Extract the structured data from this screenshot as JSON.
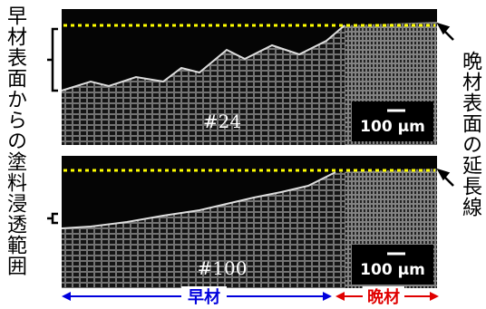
{
  "left_label": "早材表面からの塗料浸透範囲",
  "right_label": "晩材表面の延長線",
  "panels": [
    {
      "label": "#24",
      "scale_bar": "100 μm"
    },
    {
      "label": "#100",
      "scale_bar": "100 μm"
    }
  ],
  "bottom": {
    "earlywood": "早材",
    "latewood": "晩材"
  }
}
